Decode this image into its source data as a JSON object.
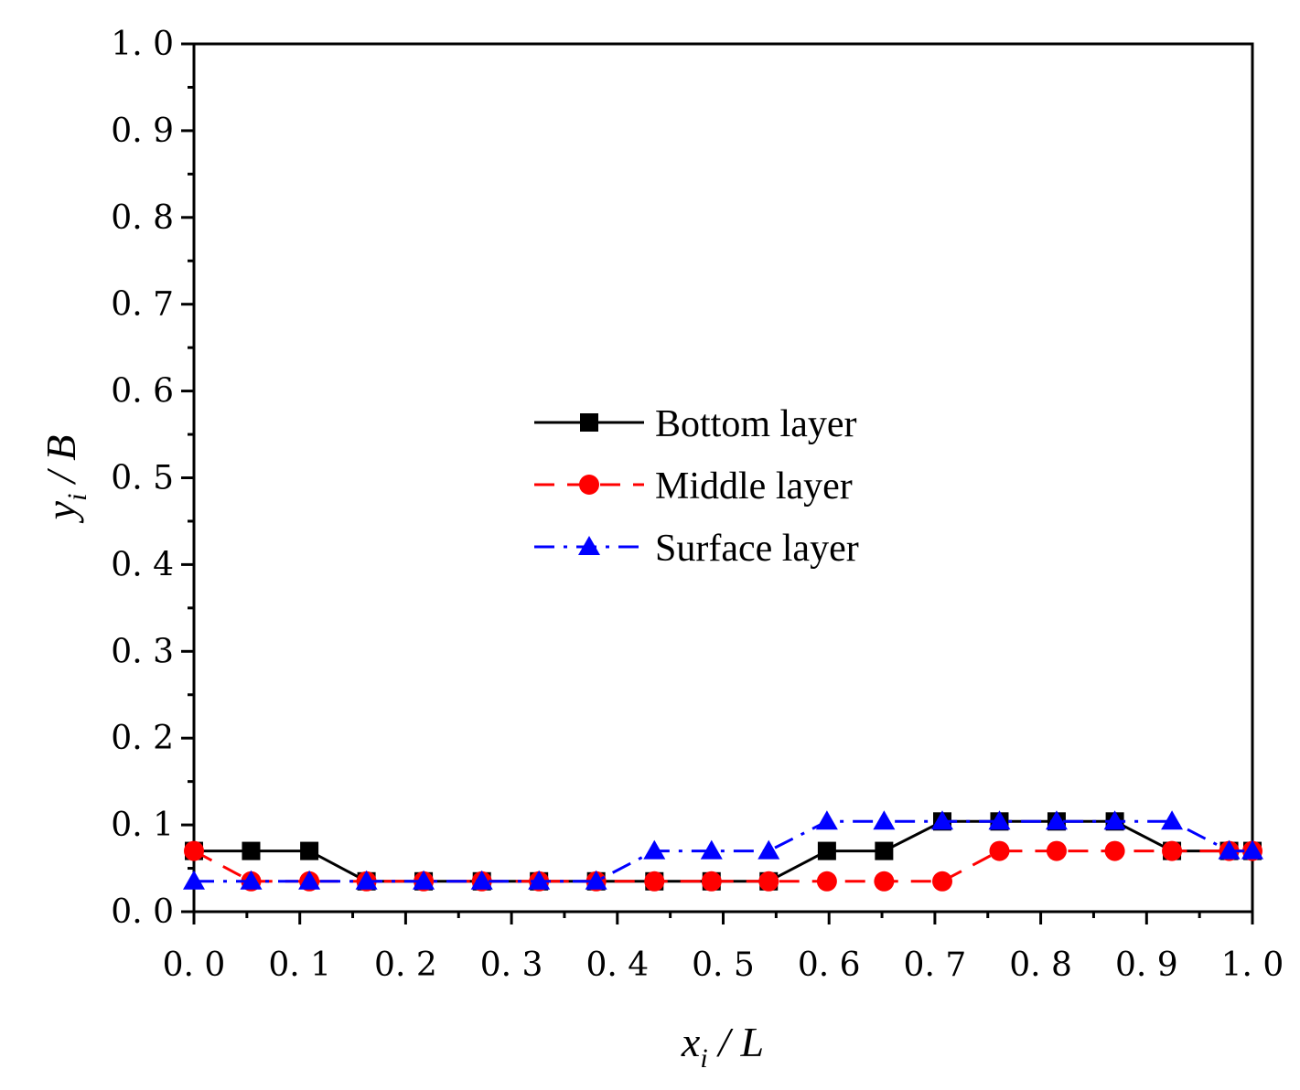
{
  "chart_data": {
    "type": "line",
    "xlabel": {
      "base": "x",
      "sub": "i",
      "rest": " / L"
    },
    "ylabel": {
      "base": "y",
      "sub": "i",
      "rest": " / B"
    },
    "xlim": [
      0,
      1
    ],
    "ylim": [
      0,
      1
    ],
    "x_ticks": [
      "0. 0",
      "0. 1",
      "0. 2",
      "0. 3",
      "0. 4",
      "0. 5",
      "0. 6",
      "0. 7",
      "0. 8",
      "0. 9",
      "1. 0"
    ],
    "y_ticks": [
      "0. 0",
      "0. 1",
      "0. 2",
      "0. 3",
      "0. 4",
      "0. 5",
      "0. 6",
      "0. 7",
      "0. 8",
      "0. 9",
      "1. 0"
    ],
    "x": [
      0.0,
      0.054,
      0.109,
      0.163,
      0.217,
      0.272,
      0.326,
      0.38,
      0.435,
      0.489,
      0.543,
      0.598,
      0.652,
      0.707,
      0.761,
      0.815,
      0.87,
      0.924,
      0.978,
      1.0
    ],
    "series": [
      {
        "name": "Bottom layer",
        "color": "#000000",
        "marker": "square",
        "dash": "solid",
        "values": [
          0.07,
          0.07,
          0.07,
          0.035,
          0.035,
          0.035,
          0.035,
          0.035,
          0.035,
          0.035,
          0.035,
          0.07,
          0.07,
          0.104,
          0.104,
          0.104,
          0.104,
          0.07,
          0.07,
          0.07
        ]
      },
      {
        "name": "Middle layer",
        "color": "#ff0000",
        "marker": "circle",
        "dash": "dash",
        "values": [
          0.07,
          0.035,
          0.035,
          0.035,
          0.035,
          0.035,
          0.035,
          0.035,
          0.035,
          0.035,
          0.035,
          0.035,
          0.035,
          0.035,
          0.07,
          0.07,
          0.07,
          0.07,
          0.07,
          0.07
        ]
      },
      {
        "name": "Surface layer",
        "color": "#0000ff",
        "marker": "triangle",
        "dash": "dashdot",
        "values": [
          0.035,
          0.035,
          0.035,
          0.035,
          0.035,
          0.035,
          0.035,
          0.035,
          0.07,
          0.07,
          0.07,
          0.104,
          0.104,
          0.104,
          0.104,
          0.104,
          0.104,
          0.104,
          0.07,
          0.07
        ]
      }
    ],
    "legend_position": "center",
    "grid": false
  }
}
